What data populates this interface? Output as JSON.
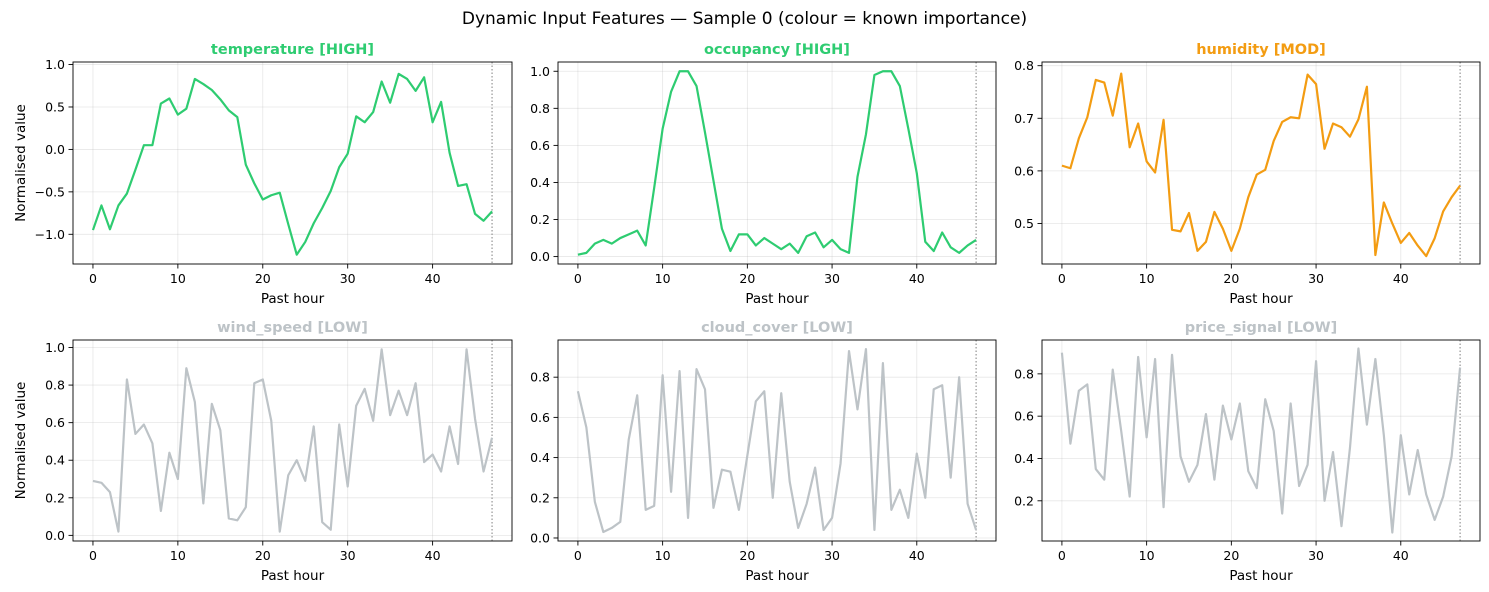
{
  "figure": {
    "title": "Dynamic Input Features — Sample 0  (colour = known importance)"
  },
  "chart_data": [
    {
      "type": "line",
      "title": "temperature  [HIGH]",
      "color": "#2ecc71",
      "xlabel": "Past hour",
      "ylabel": "Normalised value",
      "xlim": [
        -2.35,
        49.35
      ],
      "ylim": [
        -1.35,
        1.03
      ],
      "xticks": [
        0,
        10,
        20,
        30,
        40
      ],
      "xtick_labels": [
        "0",
        "10",
        "20",
        "30",
        "40"
      ],
      "yticks": [
        -1.0,
        -0.5,
        0.0,
        0.5,
        1.0
      ],
      "ytick_labels": [
        "−1.0",
        "−0.5",
        "0.0",
        "0.5",
        "1.0"
      ],
      "grid": true,
      "vline_x": 47,
      "x": [
        0,
        1,
        2,
        3,
        4,
        5,
        6,
        7,
        8,
        9,
        10,
        11,
        12,
        13,
        14,
        15,
        16,
        17,
        18,
        19,
        20,
        21,
        22,
        23,
        24,
        25,
        26,
        27,
        28,
        29,
        30,
        31,
        32,
        33,
        34,
        35,
        36,
        37,
        38,
        39,
        40,
        41,
        42,
        43,
        44,
        45,
        46,
        47
      ],
      "values": [
        -0.95,
        -0.66,
        -0.94,
        -0.66,
        -0.52,
        -0.24,
        0.05,
        0.05,
        0.54,
        0.6,
        0.41,
        0.48,
        0.83,
        0.77,
        0.7,
        0.59,
        0.46,
        0.38,
        -0.18,
        -0.4,
        -0.59,
        -0.54,
        -0.51,
        -0.88,
        -1.24,
        -1.09,
        -0.87,
        -0.69,
        -0.49,
        -0.21,
        -0.05,
        0.39,
        0.32,
        0.44,
        0.8,
        0.55,
        0.89,
        0.83,
        0.69,
        0.85,
        0.32,
        0.56,
        -0.04,
        -0.43,
        -0.41,
        -0.76,
        -0.84,
        -0.73
      ]
    },
    {
      "type": "line",
      "title": "occupancy  [HIGH]",
      "color": "#2ecc71",
      "xlabel": "Past hour",
      "ylabel": "",
      "xlim": [
        -2.35,
        49.35
      ],
      "ylim": [
        -0.04,
        1.05
      ],
      "xticks": [
        0,
        10,
        20,
        30,
        40
      ],
      "xtick_labels": [
        "0",
        "10",
        "20",
        "30",
        "40"
      ],
      "yticks": [
        0.0,
        0.2,
        0.4,
        0.6,
        0.8,
        1.0
      ],
      "ytick_labels": [
        "0.0",
        "0.2",
        "0.4",
        "0.6",
        "0.8",
        "1.0"
      ],
      "grid": true,
      "vline_x": 47,
      "x": [
        0,
        1,
        2,
        3,
        4,
        5,
        6,
        7,
        8,
        9,
        10,
        11,
        12,
        13,
        14,
        15,
        16,
        17,
        18,
        19,
        20,
        21,
        22,
        23,
        24,
        25,
        26,
        27,
        28,
        29,
        30,
        31,
        32,
        33,
        34,
        35,
        36,
        37,
        38,
        39,
        40,
        41,
        42,
        43,
        44,
        45,
        46,
        47
      ],
      "values": [
        0.01,
        0.02,
        0.07,
        0.09,
        0.07,
        0.1,
        0.12,
        0.14,
        0.06,
        0.37,
        0.69,
        0.89,
        1.0,
        1.0,
        0.92,
        0.67,
        0.41,
        0.15,
        0.03,
        0.12,
        0.12,
        0.06,
        0.1,
        0.07,
        0.04,
        0.07,
        0.02,
        0.11,
        0.13,
        0.05,
        0.09,
        0.04,
        0.02,
        0.43,
        0.66,
        0.98,
        1.0,
        1.0,
        0.92,
        0.69,
        0.45,
        0.08,
        0.03,
        0.13,
        0.05,
        0.02,
        0.06,
        0.09
      ]
    },
    {
      "type": "line",
      "title": "humidity  [MOD]",
      "color": "#f39c12",
      "xlabel": "Past hour",
      "ylabel": "",
      "xlim": [
        -2.35,
        49.35
      ],
      "ylim": [
        0.423,
        0.807
      ],
      "xticks": [
        0,
        10,
        20,
        30,
        40
      ],
      "xtick_labels": [
        "0",
        "10",
        "20",
        "30",
        "40"
      ],
      "yticks": [
        0.5,
        0.6,
        0.7,
        0.8
      ],
      "ytick_labels": [
        "0.5",
        "0.6",
        "0.7",
        "0.8"
      ],
      "grid": true,
      "vline_x": 47,
      "x": [
        0,
        1,
        2,
        3,
        4,
        5,
        6,
        7,
        8,
        9,
        10,
        11,
        12,
        13,
        14,
        15,
        16,
        17,
        18,
        19,
        20,
        21,
        22,
        23,
        24,
        25,
        26,
        27,
        28,
        29,
        30,
        31,
        32,
        33,
        34,
        35,
        36,
        37,
        38,
        39,
        40,
        41,
        42,
        43,
        44,
        45,
        46,
        47
      ],
      "values": [
        0.61,
        0.605,
        0.662,
        0.702,
        0.773,
        0.768,
        0.705,
        0.785,
        0.645,
        0.69,
        0.618,
        0.597,
        0.697,
        0.488,
        0.485,
        0.52,
        0.448,
        0.465,
        0.522,
        0.49,
        0.448,
        0.49,
        0.55,
        0.593,
        0.602,
        0.657,
        0.693,
        0.702,
        0.7,
        0.783,
        0.765,
        0.642,
        0.69,
        0.683,
        0.665,
        0.698,
        0.76,
        0.44,
        0.54,
        0.5,
        0.463,
        0.482,
        0.458,
        0.438,
        0.472,
        0.523,
        0.55,
        0.572
      ]
    },
    {
      "type": "line",
      "title": "wind_speed  [LOW]",
      "color": "#bdc3c7",
      "xlabel": "Past hour",
      "ylabel": "Normalised value",
      "xlim": [
        -2.35,
        49.35
      ],
      "ylim": [
        -0.03,
        1.04
      ],
      "xticks": [
        0,
        10,
        20,
        30,
        40
      ],
      "xtick_labels": [
        "0",
        "10",
        "20",
        "30",
        "40"
      ],
      "yticks": [
        0.0,
        0.2,
        0.4,
        0.6,
        0.8,
        1.0
      ],
      "ytick_labels": [
        "0.0",
        "0.2",
        "0.4",
        "0.6",
        "0.8",
        "1.0"
      ],
      "grid": true,
      "vline_x": 47,
      "x": [
        0,
        1,
        2,
        3,
        4,
        5,
        6,
        7,
        8,
        9,
        10,
        11,
        12,
        13,
        14,
        15,
        16,
        17,
        18,
        19,
        20,
        21,
        22,
        23,
        24,
        25,
        26,
        27,
        28,
        29,
        30,
        31,
        32,
        33,
        34,
        35,
        36,
        37,
        38,
        39,
        40,
        41,
        42,
        43,
        44,
        45,
        46,
        47
      ],
      "values": [
        0.29,
        0.28,
        0.23,
        0.02,
        0.83,
        0.54,
        0.59,
        0.49,
        0.13,
        0.44,
        0.3,
        0.89,
        0.71,
        0.17,
        0.7,
        0.56,
        0.09,
        0.08,
        0.15,
        0.81,
        0.83,
        0.61,
        0.02,
        0.32,
        0.4,
        0.29,
        0.58,
        0.07,
        0.03,
        0.59,
        0.26,
        0.69,
        0.78,
        0.61,
        0.99,
        0.64,
        0.77,
        0.64,
        0.81,
        0.39,
        0.43,
        0.34,
        0.58,
        0.38,
        0.99,
        0.62,
        0.34,
        0.52
      ]
    },
    {
      "type": "line",
      "title": "cloud_cover  [LOW]",
      "color": "#bdc3c7",
      "xlabel": "Past hour",
      "ylabel": "",
      "xlim": [
        -2.35,
        49.35
      ],
      "ylim": [
        -0.015,
        0.985
      ],
      "xticks": [
        0,
        10,
        20,
        30,
        40
      ],
      "xtick_labels": [
        "0",
        "10",
        "20",
        "30",
        "40"
      ],
      "yticks": [
        0.0,
        0.2,
        0.4,
        0.6,
        0.8
      ],
      "ytick_labels": [
        "0.0",
        "0.2",
        "0.4",
        "0.6",
        "0.8"
      ],
      "grid": true,
      "vline_x": 47,
      "x": [
        0,
        1,
        2,
        3,
        4,
        5,
        6,
        7,
        8,
        9,
        10,
        11,
        12,
        13,
        14,
        15,
        16,
        17,
        18,
        19,
        20,
        21,
        22,
        23,
        24,
        25,
        26,
        27,
        28,
        29,
        30,
        31,
        32,
        33,
        34,
        35,
        36,
        37,
        38,
        39,
        40,
        41,
        42,
        43,
        44,
        45,
        46,
        47
      ],
      "values": [
        0.73,
        0.55,
        0.18,
        0.03,
        0.05,
        0.08,
        0.49,
        0.71,
        0.14,
        0.16,
        0.81,
        0.23,
        0.83,
        0.1,
        0.84,
        0.74,
        0.15,
        0.34,
        0.33,
        0.14,
        0.41,
        0.68,
        0.73,
        0.2,
        0.72,
        0.28,
        0.05,
        0.17,
        0.35,
        0.04,
        0.1,
        0.37,
        0.93,
        0.64,
        0.94,
        0.04,
        0.87,
        0.14,
        0.24,
        0.1,
        0.42,
        0.2,
        0.74,
        0.76,
        0.3,
        0.8,
        0.17,
        0.04
      ]
    },
    {
      "type": "line",
      "title": "price_signal  [LOW]",
      "color": "#bdc3c7",
      "xlabel": "Past hour",
      "ylabel": "",
      "xlim": [
        -2.35,
        49.35
      ],
      "ylim": [
        0.01,
        0.96
      ],
      "xticks": [
        0,
        10,
        20,
        30,
        40
      ],
      "xtick_labels": [
        "0",
        "10",
        "20",
        "30",
        "40"
      ],
      "yticks": [
        0.2,
        0.4,
        0.6,
        0.8
      ],
      "ytick_labels": [
        "0.2",
        "0.4",
        "0.6",
        "0.8"
      ],
      "grid": true,
      "vline_x": 47,
      "x": [
        0,
        1,
        2,
        3,
        4,
        5,
        6,
        7,
        8,
        9,
        10,
        11,
        12,
        13,
        14,
        15,
        16,
        17,
        18,
        19,
        20,
        21,
        22,
        23,
        24,
        25,
        26,
        27,
        28,
        29,
        30,
        31,
        32,
        33,
        34,
        35,
        36,
        37,
        38,
        39,
        40,
        41,
        42,
        43,
        44,
        45,
        46,
        47
      ],
      "values": [
        0.9,
        0.47,
        0.72,
        0.75,
        0.35,
        0.3,
        0.82,
        0.53,
        0.22,
        0.88,
        0.5,
        0.87,
        0.17,
        0.89,
        0.41,
        0.29,
        0.37,
        0.61,
        0.3,
        0.65,
        0.49,
        0.66,
        0.34,
        0.26,
        0.68,
        0.53,
        0.14,
        0.66,
        0.27,
        0.37,
        0.86,
        0.2,
        0.43,
        0.08,
        0.45,
        0.92,
        0.56,
        0.87,
        0.51,
        0.05,
        0.51,
        0.23,
        0.44,
        0.23,
        0.11,
        0.22,
        0.41,
        0.83
      ]
    }
  ]
}
